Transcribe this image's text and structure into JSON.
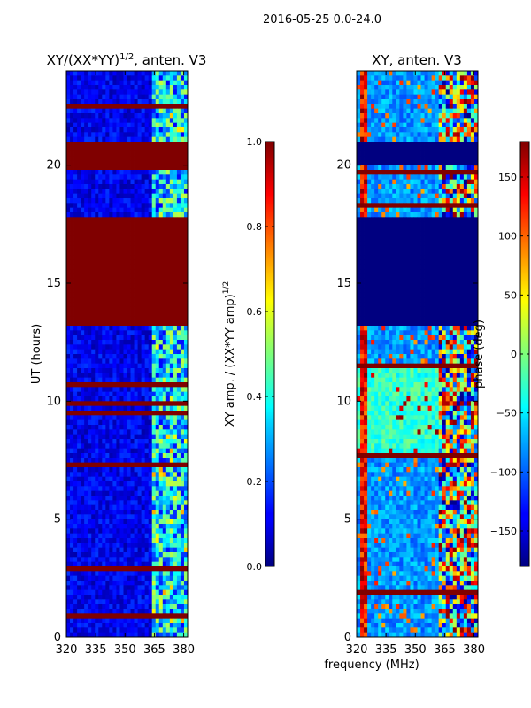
{
  "suptitle": "2016-05-25 0.0-24.0",
  "chart_data": [
    {
      "type": "heatmap",
      "title": "XY/(XX*YY)",
      "title_sup": "1/2",
      "title_suffix": ", anten. V3",
      "ylabel": "UT (hours)",
      "xlim": [
        320,
        382
      ],
      "ylim": [
        0,
        24
      ],
      "xticks": [
        "320",
        "335",
        "350",
        "365",
        "380"
      ],
      "xtick_values": [
        320,
        335,
        350,
        365,
        380
      ],
      "yticks": [
        "0",
        "5",
        "10",
        "15",
        "20"
      ],
      "ytick_values": [
        0,
        5,
        10,
        15,
        20
      ],
      "colorbar": {
        "label": "XY amp. / (XX*YY amp)",
        "label_sup": "1/2",
        "range": [
          0,
          1
        ],
        "ticks": [
          "0.0",
          "0.2",
          "0.4",
          "0.6",
          "0.8",
          "1.0"
        ],
        "tick_values": [
          0,
          0.2,
          0.4,
          0.6,
          0.8,
          1.0
        ]
      },
      "saturated_blocks_hours": [
        [
          13.2,
          17.7
        ],
        [
          20.0,
          21.0
        ]
      ],
      "bright_channel_range_mhz": [
        363,
        382
      ]
    },
    {
      "type": "heatmap",
      "title": "XY, anten. V3",
      "ylabel": "phase (deg)",
      "xlabel": "frequency (MHz)",
      "xlim": [
        320,
        382
      ],
      "ylim": [
        0,
        24
      ],
      "xticks": [
        "320",
        "335",
        "350",
        "365",
        "380"
      ],
      "xtick_values": [
        320,
        335,
        350,
        365,
        380
      ],
      "yticks": [
        "0",
        "5",
        "10",
        "15",
        "20"
      ],
      "ytick_values": [
        0,
        5,
        10,
        15,
        20
      ],
      "colorbar": {
        "label": "phase (deg)",
        "range": [
          -180,
          180
        ],
        "ticks": [
          "150",
          "100",
          "50",
          "0",
          "−50",
          "−100",
          "−150"
        ],
        "tick_values": [
          150,
          100,
          50,
          0,
          -50,
          -100,
          -150
        ]
      },
      "blank_blocks_hours": [
        [
          13.2,
          17.7
        ],
        [
          20.0,
          21.0
        ]
      ]
    }
  ],
  "colors": {
    "dark_blue": "#00007f",
    "mid_blue": "#0000ff",
    "dark_red": "#7f0000"
  }
}
